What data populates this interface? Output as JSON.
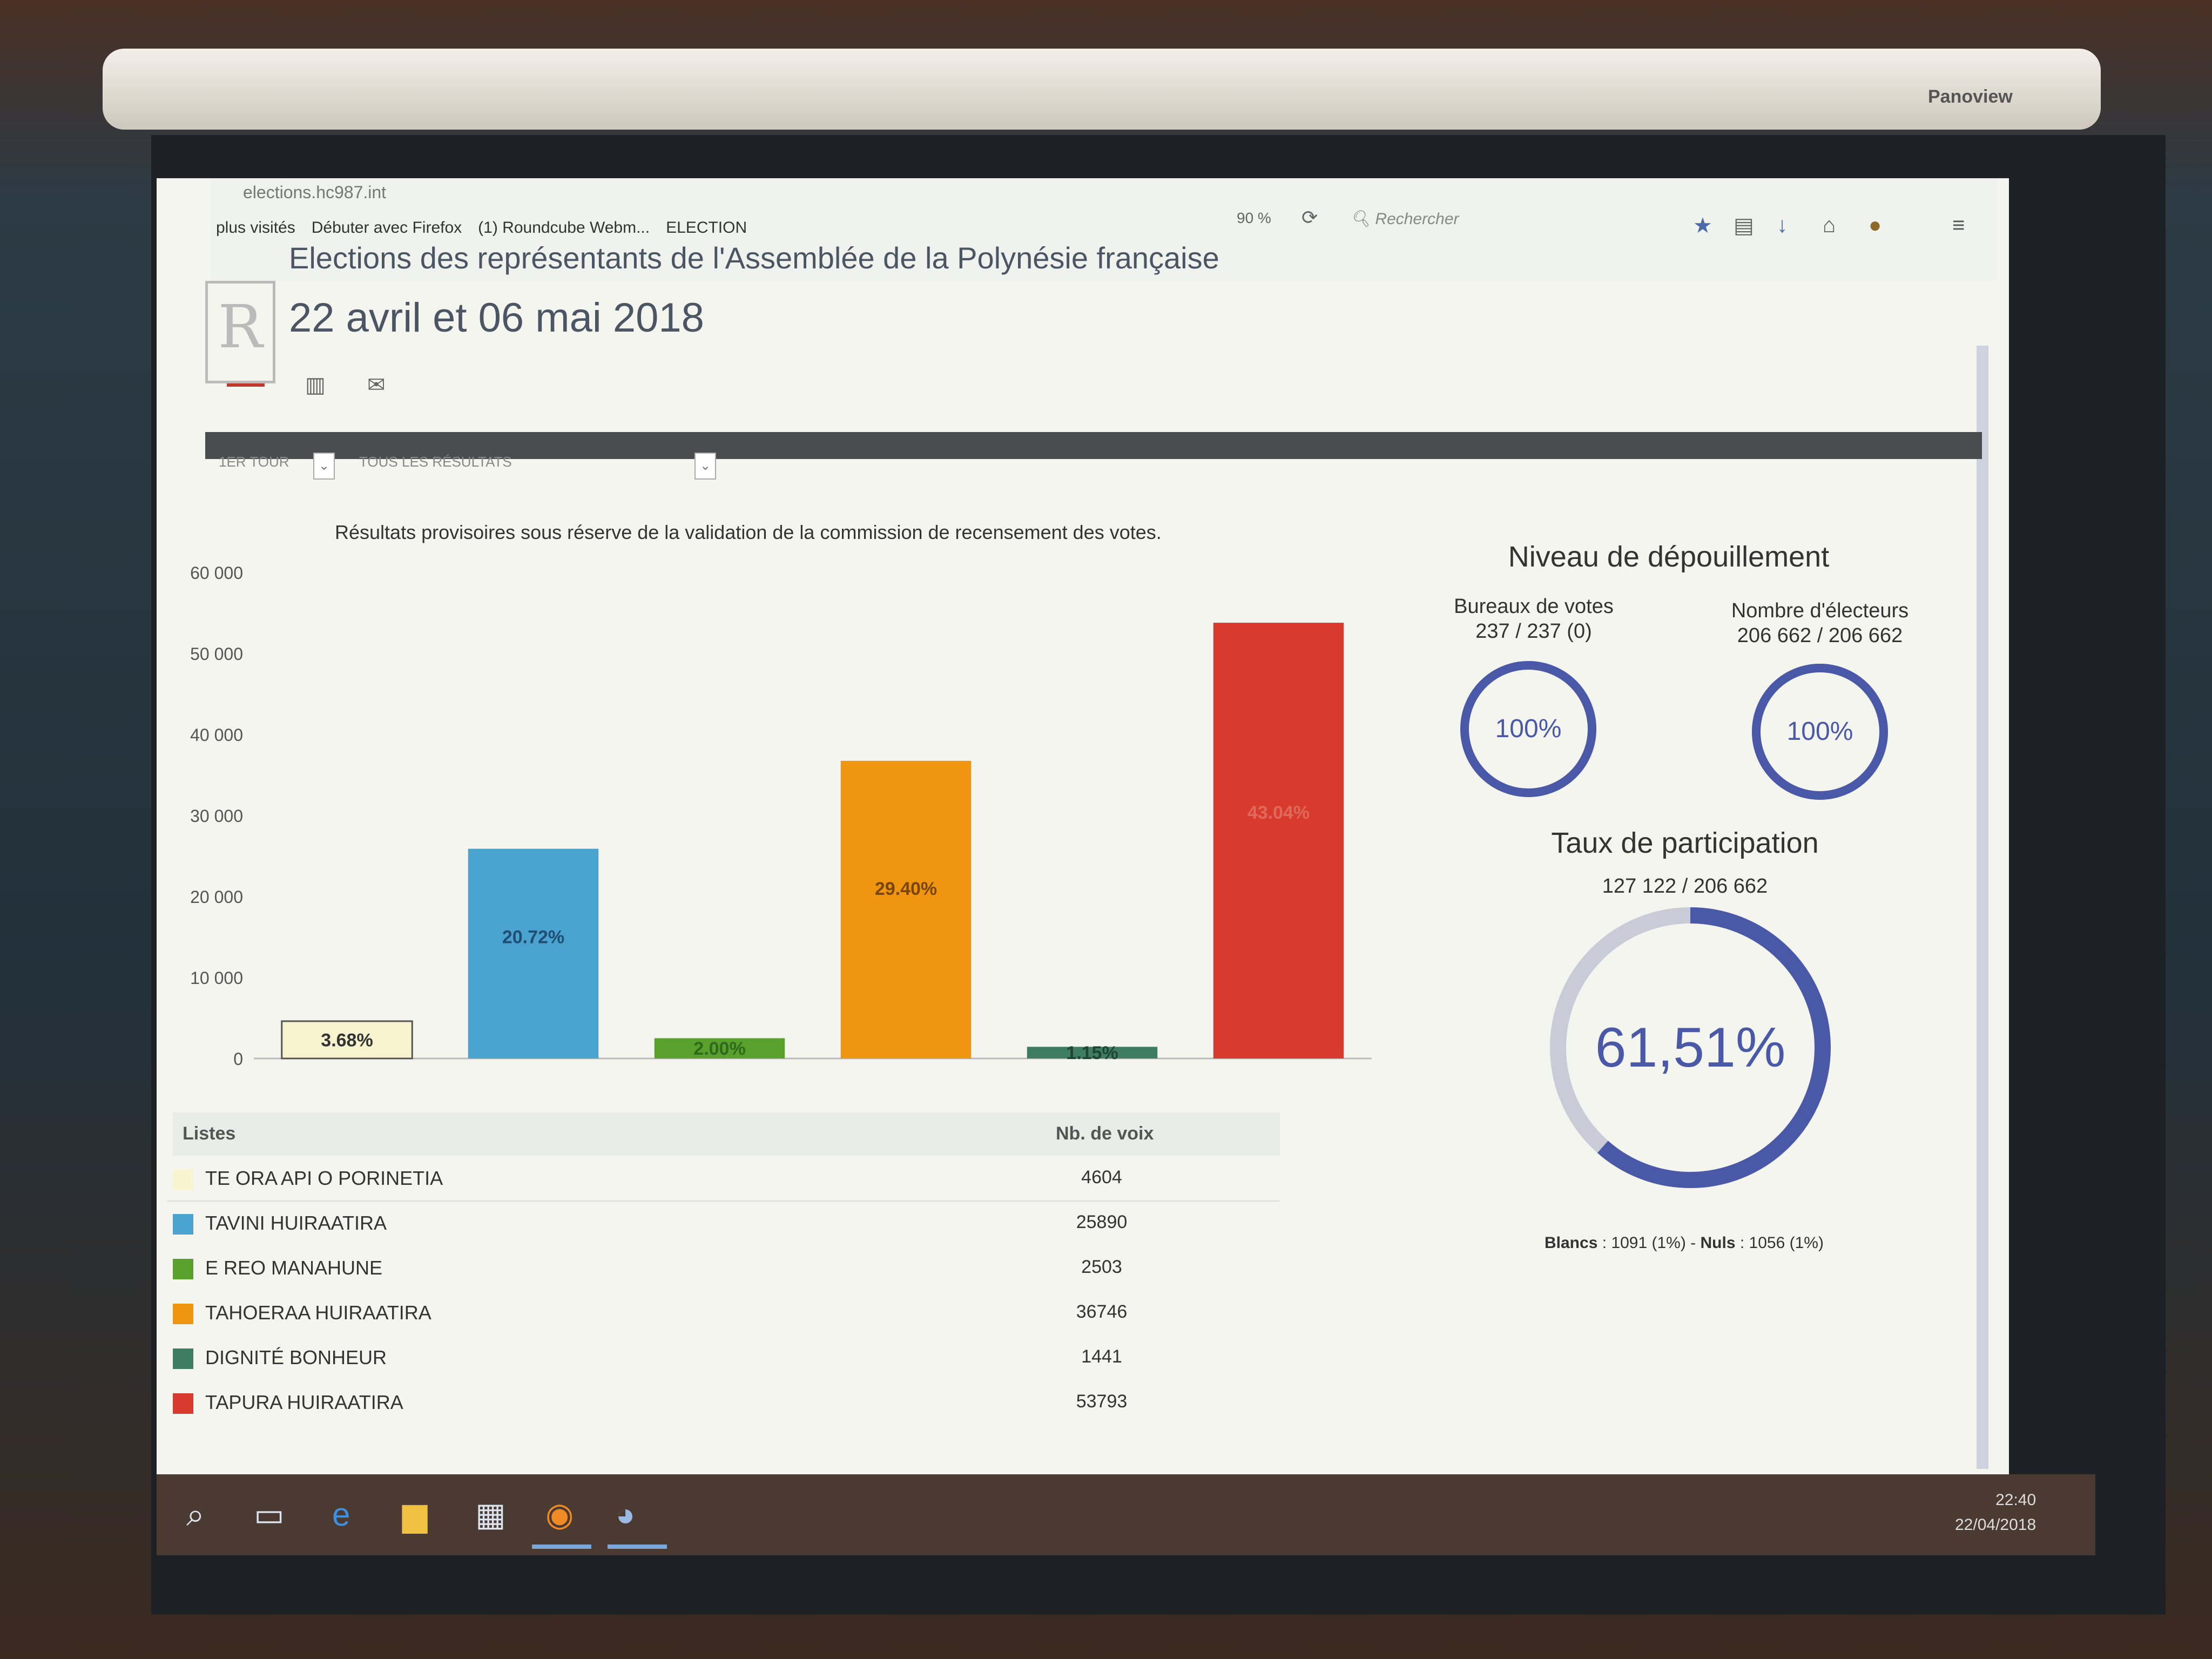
{
  "browser": {
    "url": "elections.hc987.int",
    "bookmarks": [
      "plus visités",
      "Débuter avec Firefox",
      "(1) Roundcube Webm...",
      "ELECTION"
    ],
    "zoom": "90 %",
    "search_placeholder": "Rechercher",
    "brand": "Panoview"
  },
  "page": {
    "title": "Elections des représentants de l'Assemblée de la Polynésie française",
    "date": "22 avril et 06 mai 2018",
    "filter_round": "1ER TOUR",
    "filter_results": "TOUS LES RÉSULTATS",
    "notice": "Résultats provisoires sous réserve de la validation de la commission de recensement des votes."
  },
  "chart_data": {
    "type": "bar",
    "categories": [
      "TE ORA API O PORINETIA",
      "TAVINI HUIRAATIRA",
      "E REO MANAHUNE",
      "TAHOERAA HUIRAATIRA",
      "DIGNITÉ BONHEUR",
      "TAPURA HUIRAATIRA"
    ],
    "values": [
      4604,
      25890,
      2503,
      36746,
      1441,
      53793
    ],
    "data_labels": [
      "3.68%",
      "20.72%",
      "2.00%",
      "29.40%",
      "1.15%",
      "43.04%"
    ],
    "colors": [
      "#f7f3cf",
      "#4aa3cf",
      "#5aa02c",
      "#f0950f",
      "#3e7d62",
      "#d83a2e"
    ],
    "label_colors": [
      "#333333",
      "#1f4d73",
      "#2f6a1c",
      "#7a4508",
      "#1e4433",
      "#e06a5a"
    ],
    "y_ticks": [
      "0",
      "10 000",
      "20 000",
      "30 000",
      "40 000",
      "50 000",
      "60 000"
    ],
    "y_tick_values": [
      0,
      10000,
      20000,
      30000,
      40000,
      50000,
      60000
    ],
    "ylim": [
      0,
      60000
    ]
  },
  "table": {
    "col_list": "Listes",
    "col_votes": "Nb. de voix",
    "rows": [
      {
        "name": "TE ORA API O PORINETIA",
        "votes": "4604",
        "color": "#f7f3cf"
      },
      {
        "name": "TAVINI HUIRAATIRA",
        "votes": "25890",
        "color": "#4aa3cf"
      },
      {
        "name": "E REO MANAHUNE",
        "votes": "2503",
        "color": "#5aa02c"
      },
      {
        "name": "TAHOERAA HUIRAATIRA",
        "votes": "36746",
        "color": "#f0950f"
      },
      {
        "name": "DIGNITÉ BONHEUR",
        "votes": "1441",
        "color": "#3e7d62"
      },
      {
        "name": "TAPURA HUIRAATIRA",
        "votes": "53793",
        "color": "#d83a2e"
      }
    ]
  },
  "depouillement": {
    "title": "Niveau de dépouillement",
    "bureaux_label": "Bureaux de votes",
    "bureaux_value": "237 / 237 (0)",
    "bureaux_pct": "100%",
    "bureaux_fraction": 1.0,
    "electeurs_label": "Nombre d'électeurs",
    "electeurs_value": "206 662 / 206 662",
    "electeurs_pct": "100%",
    "electeurs_fraction": 1.0
  },
  "participation": {
    "title": "Taux de participation",
    "value": "127 122 / 206 662",
    "pct": "61,51%",
    "fraction": 0.6151,
    "blancs_label": "Blancs",
    "blancs_value": ": 1091 (1%) -",
    "nuls_label": "Nuls",
    "nuls_value": ": 1056 (1%)"
  },
  "colors": {
    "ring": "#4a58a8",
    "ring_track": "#c9ccd6"
  },
  "taskbar": {
    "time": "22:40",
    "date": "22/04/2018"
  }
}
